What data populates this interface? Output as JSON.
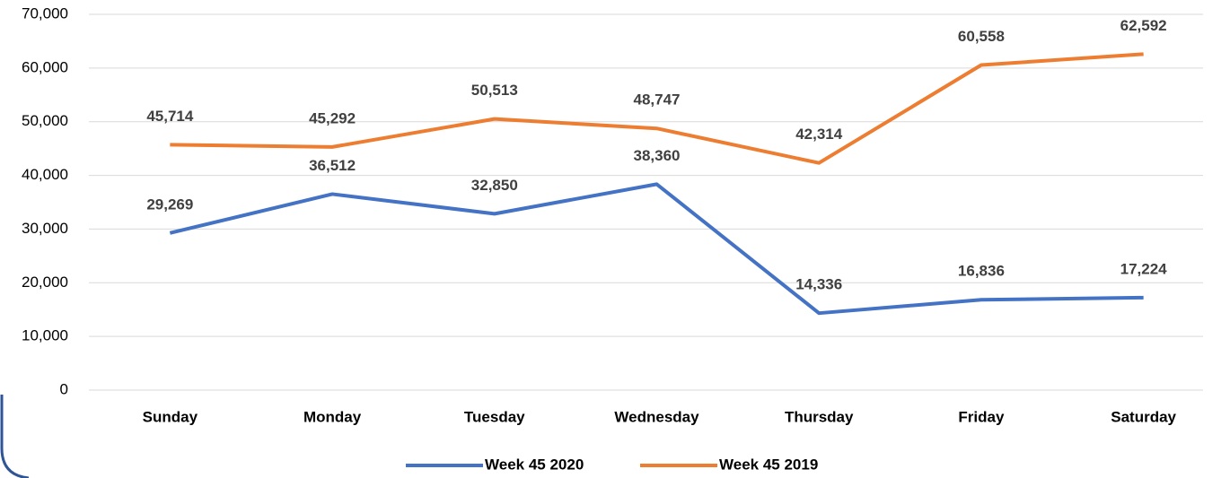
{
  "chart_data": {
    "type": "line",
    "categories": [
      "Sunday",
      "Monday",
      "Tuesday",
      "Wednesday",
      "Thursday",
      "Friday",
      "Saturday"
    ],
    "series": [
      {
        "name": "Week 45 2020",
        "color": "#4472c4",
        "values": [
          29269,
          36512,
          32850,
          38360,
          14336,
          16836,
          17224
        ],
        "value_labels": [
          "29,269",
          "36,512",
          "32,850",
          "38,360",
          "14,336",
          "16,836",
          "17,224"
        ]
      },
      {
        "name": "Week 45 2019",
        "color": "#ed7d31",
        "values": [
          45714,
          45292,
          50513,
          48747,
          42314,
          60558,
          62592
        ],
        "value_labels": [
          "45,714",
          "45,292",
          "50,513",
          "48,747",
          "42,314",
          "60,558",
          "62,592"
        ]
      }
    ],
    "ylim": [
      0,
      70000
    ],
    "yticks": [
      0,
      {
        "value": 10000,
        "label": "10,000"
      },
      {
        "value": 20000,
        "label": "20,000"
      },
      {
        "value": 30000,
        "label": "30,000"
      },
      {
        "value": 40000,
        "label": "40,000"
      },
      {
        "value": 50000,
        "label": "50,000"
      },
      {
        "value": 60000,
        "label": "60,000"
      },
      {
        "value": 70000,
        "label": "70,000"
      }
    ],
    "grid": true,
    "legend": "bottom"
  }
}
